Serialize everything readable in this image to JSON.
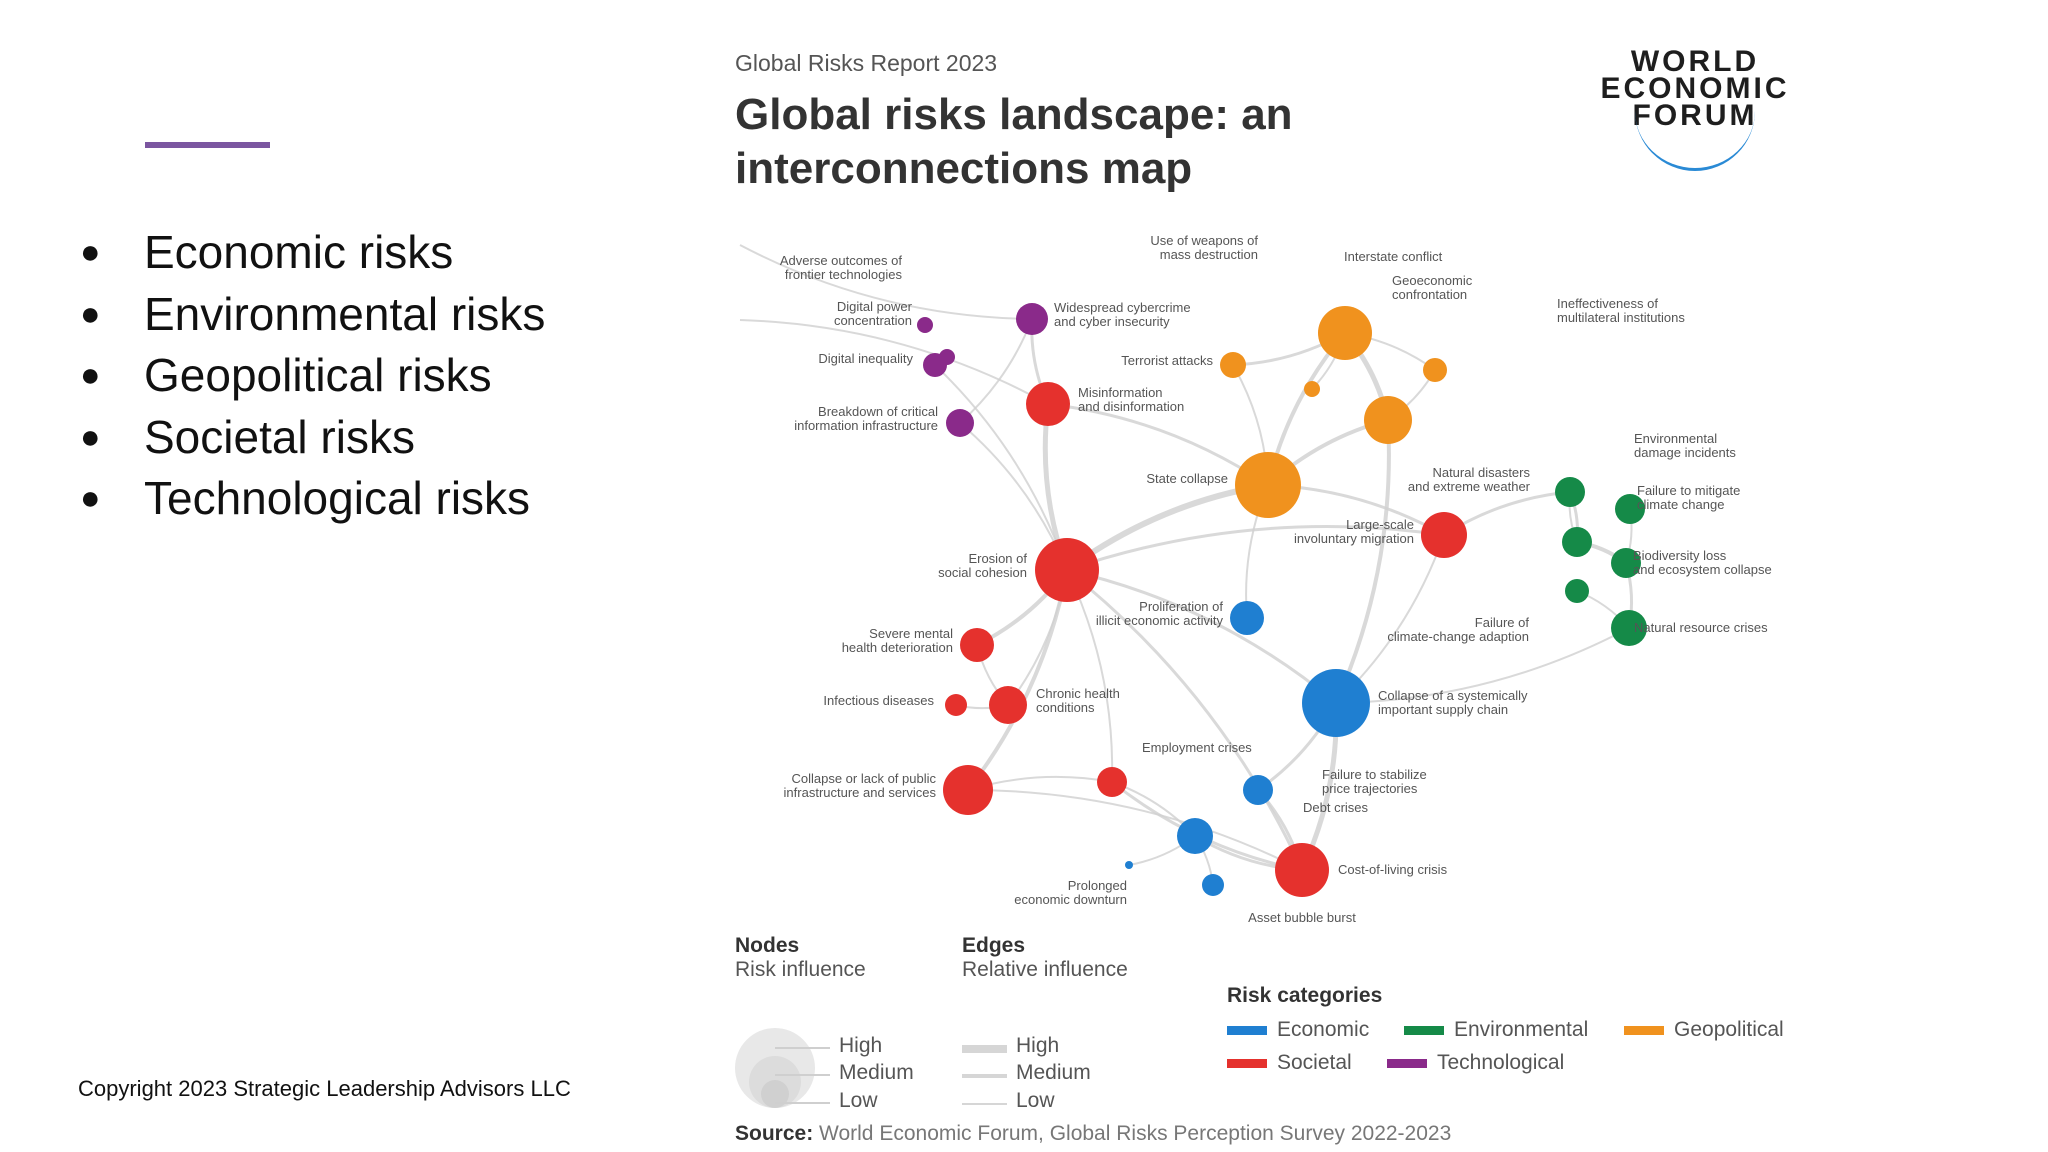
{
  "slide": {
    "bullets": [
      "Economic risks",
      "Environmental risks",
      "Geopolitical risks",
      "Societal risks",
      "Technological risks"
    ],
    "copyright": "Copyright 2023 Strategic Leadership Advisors LLC"
  },
  "figure": {
    "supertitle": "Global Risks Report 2023",
    "title": "Global risks landscape: an interconnections map",
    "logo": "WORLD ECONOMIC FORUM",
    "source_label": "Source:",
    "source_text": "World Economic Forum, Global Risks Perception Survey 2022-2023"
  },
  "colors": {
    "Economic": "#1f7fd1",
    "Environmental": "#158a48",
    "Geopolitical": "#f0921e",
    "Societal": "#e5312d",
    "Technological": "#8a2a8a"
  },
  "legend": {
    "nodes_title": "Nodes",
    "nodes_sub": "Risk influence",
    "edges_title": "Edges",
    "edges_sub": "Relative influence",
    "levels": [
      "High",
      "Medium",
      "Low"
    ],
    "categories_title": "Risk categories",
    "categories": [
      "Economic",
      "Environmental",
      "Geopolitical",
      "Societal",
      "Technological"
    ]
  },
  "nodes": [
    {
      "id": "adverse",
      "label": "Adverse outcomes of frontier technologies",
      "cat": "Technological",
      "size": "low"
    },
    {
      "id": "digpower",
      "label": "Digital power concentration",
      "cat": "Technological",
      "size": "low"
    },
    {
      "id": "diginequal",
      "label": "Digital inequality",
      "cat": "Technological",
      "size": "low"
    },
    {
      "id": "breakdown",
      "label": "Breakdown of critical information infrastructure",
      "cat": "Technological",
      "size": "low"
    },
    {
      "id": "cybercrime",
      "label": "Widespread cybercrime and cyber insecurity",
      "cat": "Technological",
      "size": "low"
    },
    {
      "id": "misinfo",
      "label": "Misinformation and disinformation",
      "cat": "Societal",
      "size": "medium"
    },
    {
      "id": "wmd",
      "label": "Use of weapons of mass destruction",
      "cat": "Geopolitical",
      "size": "low"
    },
    {
      "id": "terror",
      "label": "Terrorist attacks",
      "cat": "Geopolitical",
      "size": "low"
    },
    {
      "id": "interstate",
      "label": "Interstate conflict",
      "cat": "Geopolitical",
      "size": "high"
    },
    {
      "id": "geoeco",
      "label": "Geoeconomic confrontation",
      "cat": "Geopolitical",
      "size": "medium"
    },
    {
      "id": "multilat",
      "label": "Ineffectiveness of multilateral institutions",
      "cat": "Geopolitical",
      "size": "low"
    },
    {
      "id": "statecollapse",
      "label": "State collapse",
      "cat": "Geopolitical",
      "size": "high"
    },
    {
      "id": "natdis",
      "label": "Natural disasters and extreme weather",
      "cat": "Environmental",
      "size": "low"
    },
    {
      "id": "envdamage",
      "label": "Environmental damage incidents",
      "cat": "Environmental",
      "size": "low"
    },
    {
      "id": "mitigate",
      "label": "Failure to mitigate climate change",
      "cat": "Environmental",
      "size": "low"
    },
    {
      "id": "biodiv",
      "label": "Biodiversity loss and ecosystem collapse",
      "cat": "Environmental",
      "size": "low"
    },
    {
      "id": "adapt",
      "label": "Failure of climate-change adaption",
      "cat": "Environmental",
      "size": "low"
    },
    {
      "id": "natres",
      "label": "Natural resource crises",
      "cat": "Environmental",
      "size": "low"
    },
    {
      "id": "migration",
      "label": "Large-scale involuntary migration",
      "cat": "Societal",
      "size": "medium"
    },
    {
      "id": "cohesion",
      "label": "Erosion of social cohesion",
      "cat": "Societal",
      "size": "high"
    },
    {
      "id": "illicit",
      "label": "Proliferation of illicit economic activity",
      "cat": "Economic",
      "size": "low"
    },
    {
      "id": "mental",
      "label": "Severe mental health deterioration",
      "cat": "Societal",
      "size": "low"
    },
    {
      "id": "infectious",
      "label": "Infectious diseases",
      "cat": "Societal",
      "size": "low"
    },
    {
      "id": "chronic",
      "label": "Chronic health conditions",
      "cat": "Societal",
      "size": "low"
    },
    {
      "id": "supplychain",
      "label": "Collapse of a systemically important supply chain",
      "cat": "Economic",
      "size": "high"
    },
    {
      "id": "employment",
      "label": "Employment crises",
      "cat": "Societal",
      "size": "low"
    },
    {
      "id": "infra",
      "label": "Collapse or lack of public infrastructure and services",
      "cat": "Societal",
      "size": "medium"
    },
    {
      "id": "price",
      "label": "Failure to stabilize price trajectories",
      "cat": "Economic",
      "size": "low"
    },
    {
      "id": "debt",
      "label": "Debt crises",
      "cat": "Economic",
      "size": "low"
    },
    {
      "id": "costliving",
      "label": "Cost-of-living crisis",
      "cat": "Societal",
      "size": "medium"
    },
    {
      "id": "downturn",
      "label": "Prolonged economic downturn",
      "cat": "Economic",
      "size": "low"
    },
    {
      "id": "bubble",
      "label": "Asset bubble burst",
      "cat": "Economic",
      "size": "low"
    }
  ]
}
